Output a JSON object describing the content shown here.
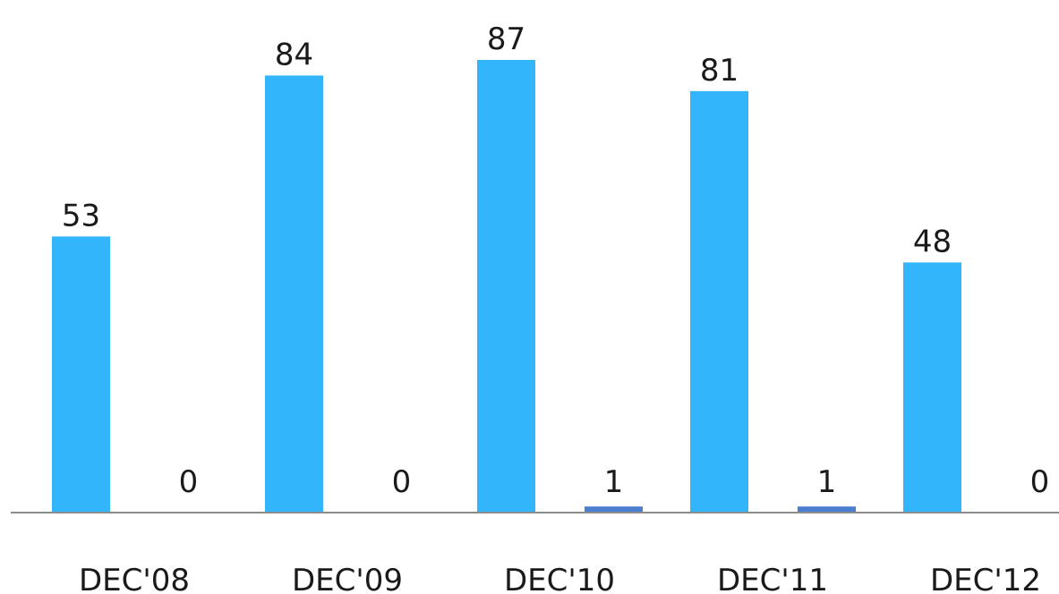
{
  "chart_data": {
    "type": "bar",
    "categories": [
      "DEC'08",
      "DEC'09",
      "DEC'10",
      "DEC'11",
      "DEC'12"
    ],
    "series": [
      {
        "values": [
          53,
          84,
          87,
          81,
          48
        ],
        "color": "#33b5fb"
      },
      {
        "values": [
          0,
          0,
          1,
          1,
          0
        ],
        "color": "#4a7ecf"
      }
    ],
    "data_labels": true,
    "grid": false,
    "legend": "none",
    "ylim": [
      0,
      87
    ]
  }
}
